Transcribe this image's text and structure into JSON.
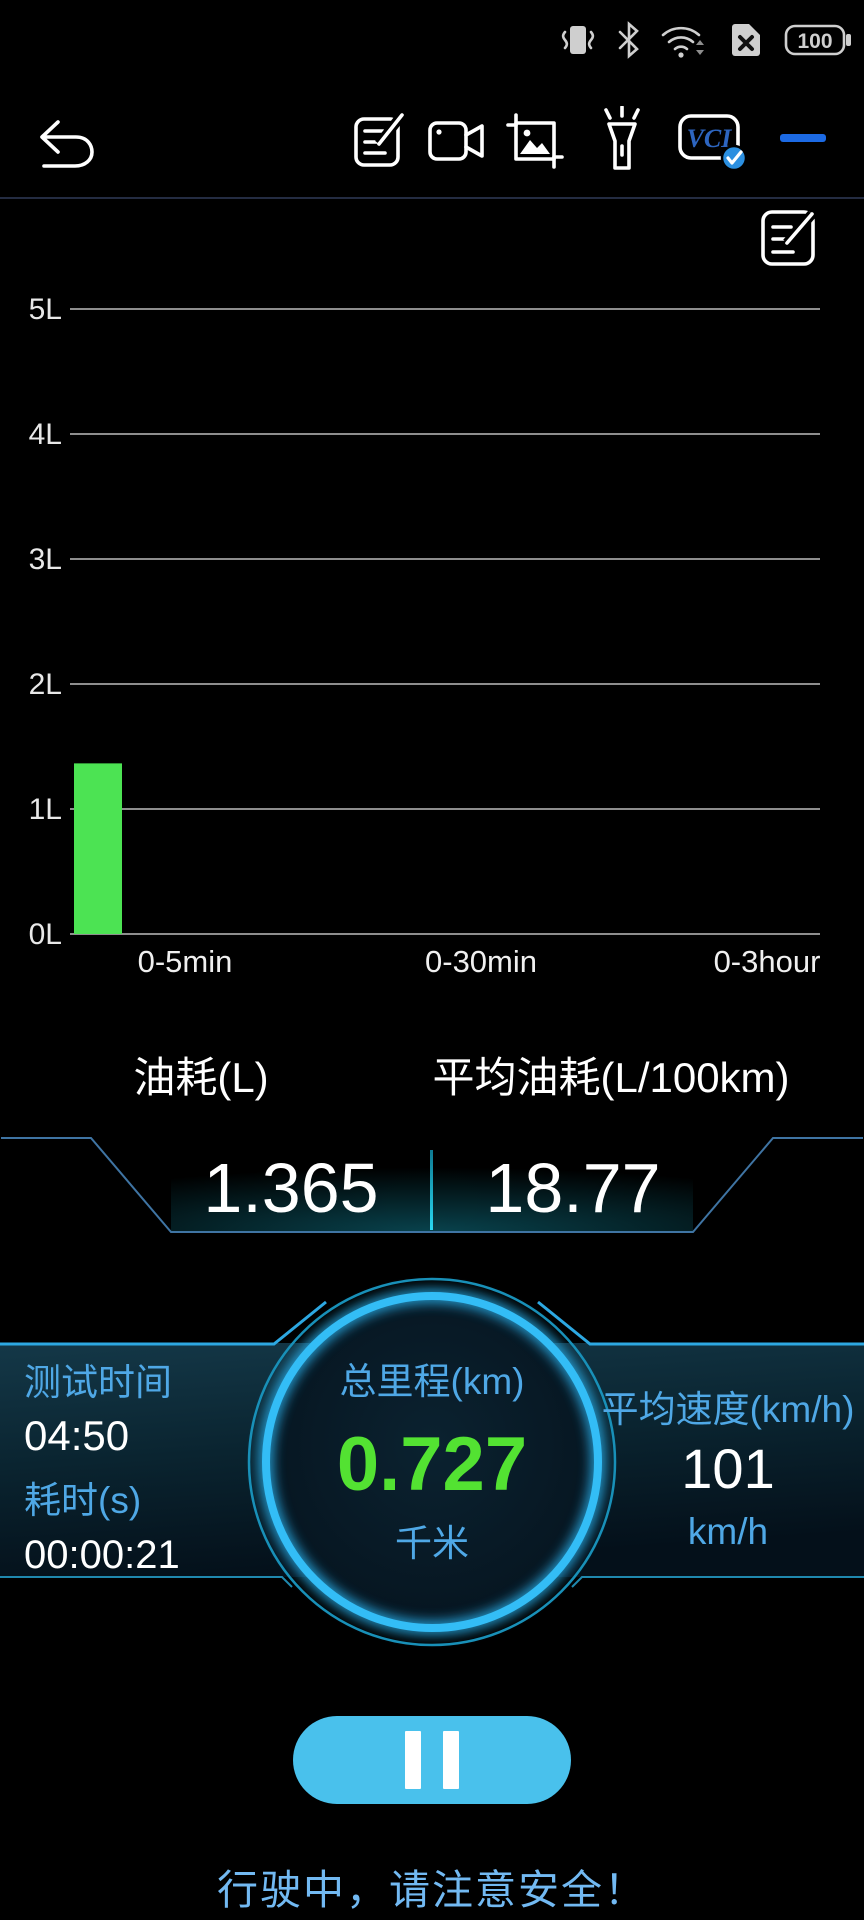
{
  "status_bar": {
    "battery_level": "100",
    "icons": [
      "vibrate-icon",
      "bluetooth-icon",
      "wifi-icon",
      "no-sim-icon",
      "battery-icon"
    ]
  },
  "toolbar": {
    "icons": [
      "back-icon",
      "note-edit-icon",
      "video-record-icon",
      "screenshot-image-icon",
      "flashlight-icon",
      "vci-device-icon",
      "minimize-icon"
    ],
    "vci_label": "VCI"
  },
  "chart_data": {
    "type": "bar",
    "title": "",
    "categories": [
      "0-5min",
      "0-30min",
      "0-3hour"
    ],
    "values": [
      1.365,
      0,
      0
    ],
    "y_ticks": [
      "0L",
      "1L",
      "2L",
      "3L",
      "4L",
      "5L"
    ],
    "ylim": [
      0,
      5
    ],
    "xlabel": "",
    "ylabel": "L",
    "grid": true,
    "legend": "none",
    "bar_color": "#4ce353"
  },
  "metrics": {
    "fuel_label": "油耗(L)",
    "fuel_value": "1.365",
    "avg_fuel_label": "平均油耗(L/100km)",
    "avg_fuel_value": "18.77"
  },
  "dashboard": {
    "test_time_label": "测试时间",
    "test_time_value": "04:50",
    "elapsed_label": "耗时(s)",
    "elapsed_value": "00:00:21",
    "mileage_label": "总里程(km)",
    "mileage_value": "0.727",
    "mileage_unit": "千米",
    "avg_speed_label": "平均速度(km/h)",
    "avg_speed_value": "101",
    "avg_speed_unit": "km/h"
  },
  "footer": {
    "warning_text": "行驶中，请注意安全！"
  },
  "colors": {
    "accent_blue": "#2ab5f2",
    "label_blue": "#4fa8e6",
    "value_green": "#53e232",
    "bar_green": "#4ce353",
    "pause_blue": "#49c1ec",
    "warning_blue": "#72b9f2",
    "panel_border_blue": "#3f74a3",
    "divider_cyan": "#22d4f0"
  }
}
